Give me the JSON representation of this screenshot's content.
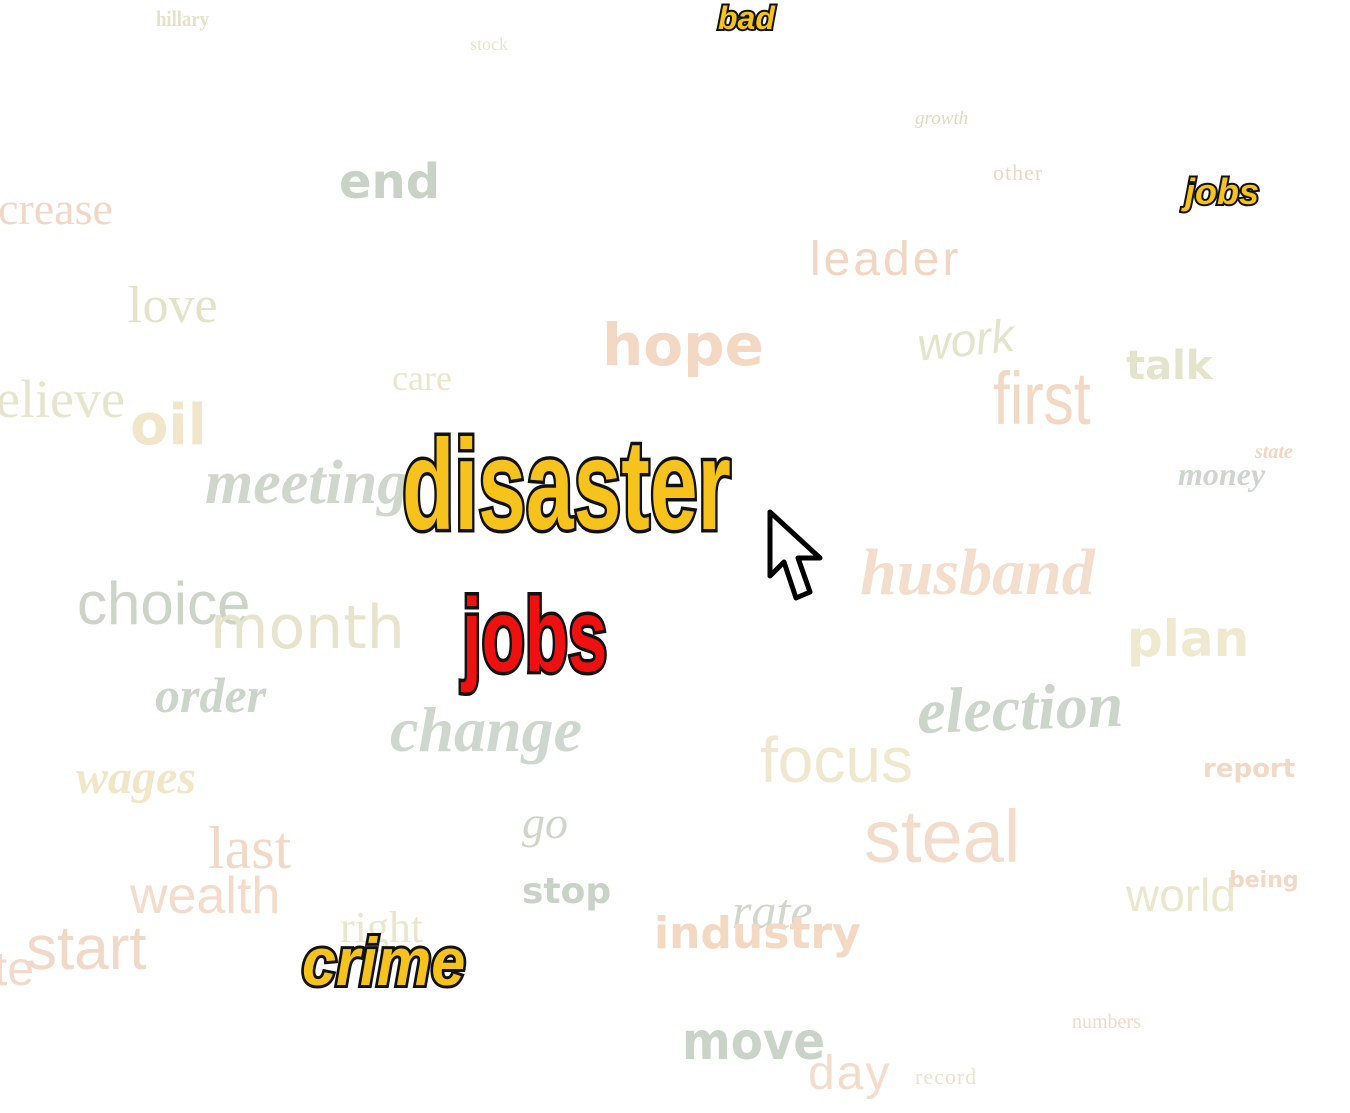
{
  "colors": {
    "highlight_yellow": "#f6c21c",
    "highlight_red": "#ef1010",
    "outline": "#111111",
    "faded_peach": "#f2d9c6",
    "faded_sage": "#cdd6cc",
    "faded_cream": "#efecd3",
    "faded_olive": "#dfe0c8"
  },
  "highlighted_words": {
    "disaster": "disaster",
    "jobs_main": "jobs",
    "crime": "crime",
    "bad": "bad",
    "jobs_corner": "jobs"
  },
  "faded_words": {
    "hillary": "hillary",
    "stock": "stock",
    "growth": "growth",
    "end": "end",
    "other": "other",
    "increase": "crease",
    "leader": "leader",
    "love": "love",
    "hope": "hope",
    "work": "work",
    "talk": "talk",
    "care": "care",
    "believe": "elieve",
    "oil": "oil",
    "first": "first",
    "state": "state",
    "money": "money",
    "meeting": "meeting",
    "husband": "husband",
    "choice": "choice",
    "month": "month",
    "plan": "plan",
    "order": "order",
    "change": "change",
    "election": "election",
    "focus": "focus",
    "wages": "wages",
    "report": "report",
    "go": "go",
    "last": "last",
    "steal": "steal",
    "wealth": "wealth",
    "stop": "stop",
    "rate": "rate",
    "world": "world",
    "being": "being",
    "right": "right",
    "industry": "industry",
    "start": "start",
    "te": "te",
    "numbers": "numbers",
    "move": "move",
    "day": "day",
    "record": "record"
  },
  "cursor": {
    "icon": "arrow-cursor-icon"
  }
}
